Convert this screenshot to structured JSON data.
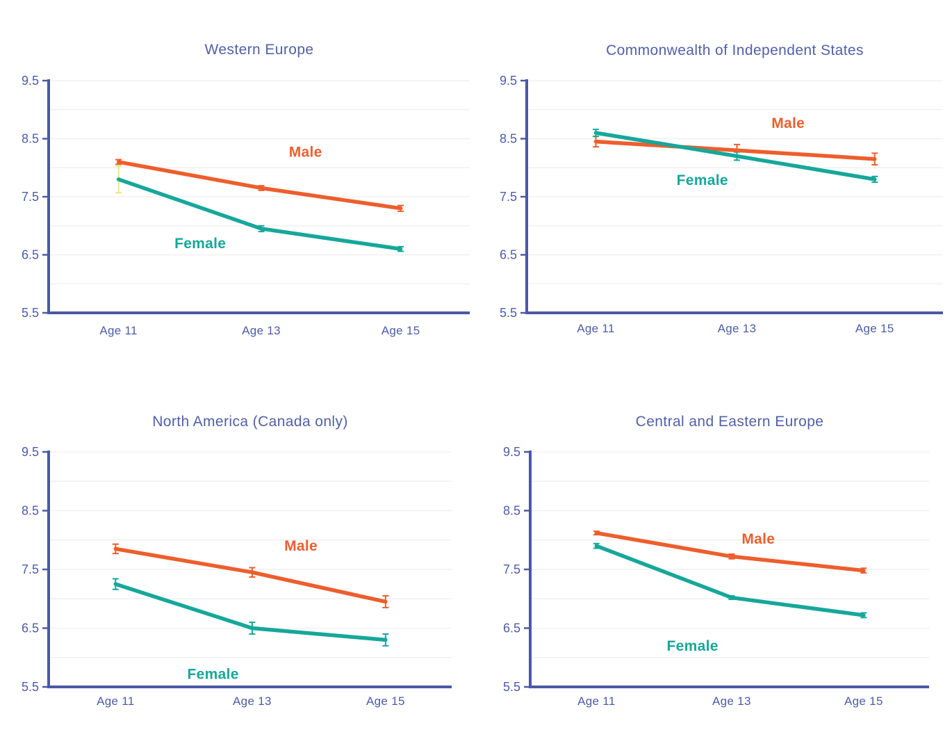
{
  "colors": {
    "male": "#ED5E2D",
    "female": "#16A79A",
    "axis": "#4A59A4",
    "tick_label": "#4C5BA8",
    "title": "#5160A8",
    "grid": "#F0F0F0",
    "ci_yellow": "#E3EA82",
    "background": "#FFFFFF"
  },
  "legend": {
    "male_label": "Male",
    "female_label": "Female"
  },
  "x_axis": {
    "categories": [
      "Age 11",
      "Age 13",
      "Age 15"
    ]
  },
  "y_axis": {
    "ticks": [
      9.5,
      8.5,
      7.5,
      6.5,
      5.5
    ],
    "min": 5.5,
    "max": 9.5,
    "grid_step": 0.5
  },
  "chart_data": [
    {
      "type": "line",
      "title": "Western Europe",
      "categories": [
        "Age 11",
        "Age 13",
        "Age 15"
      ],
      "ylim": [
        5.5,
        9.5
      ],
      "yticks": [
        9.5,
        8.5,
        7.5,
        6.5,
        5.5
      ],
      "series": [
        {
          "name": "Male",
          "color": "#ED5E2D",
          "values": [
            8.1,
            7.65,
            7.3
          ],
          "errors": [
            0.04,
            0.04,
            0.05
          ],
          "label": {
            "x_frac": 0.61,
            "y": 8.27
          }
        },
        {
          "name": "Female",
          "color": "#16A79A",
          "values": [
            7.8,
            6.95,
            6.6
          ],
          "errors": [
            0.23,
            0.05,
            0.04
          ],
          "error_colors": [
            "#E3EA82",
            null,
            null
          ],
          "label": {
            "x_frac": 0.36,
            "y": 6.7
          }
        }
      ]
    },
    {
      "type": "line",
      "title": "Commonwealth of Independent States",
      "categories": [
        "Age 11",
        "Age 13",
        "Age 15"
      ],
      "ylim": [
        5.5,
        9.5
      ],
      "yticks": [
        9.5,
        8.5,
        7.5,
        6.5,
        5.5
      ],
      "series": [
        {
          "name": "Male",
          "color": "#ED5E2D",
          "values": [
            8.45,
            8.3,
            8.15
          ],
          "errors": [
            0.09,
            0.1,
            0.1
          ],
          "label": {
            "x_frac": 0.628,
            "y": 8.77
          }
        },
        {
          "name": "Female",
          "color": "#16A79A",
          "values": [
            8.6,
            8.2,
            7.8
          ],
          "errors": [
            0.06,
            0.07,
            0.05
          ],
          "label": {
            "x_frac": 0.422,
            "y": 7.79
          }
        }
      ]
    },
    {
      "type": "line",
      "title": "North America (Canada only)",
      "categories": [
        "Age 11",
        "Age 13",
        "Age 15"
      ],
      "ylim": [
        5.5,
        9.5
      ],
      "yticks": [
        9.5,
        8.5,
        7.5,
        6.5,
        5.5
      ],
      "series": [
        {
          "name": "Male",
          "color": "#ED5E2D",
          "values": [
            7.85,
            7.45,
            6.95
          ],
          "errors": [
            0.08,
            0.08,
            0.1
          ],
          "label": {
            "x_frac": 0.626,
            "y": 7.9
          }
        },
        {
          "name": "Female",
          "color": "#16A79A",
          "values": [
            7.25,
            6.5,
            6.3
          ],
          "errors": [
            0.09,
            0.1,
            0.1
          ],
          "label": {
            "x_frac": 0.408,
            "y": 5.72
          }
        }
      ]
    },
    {
      "type": "line",
      "title": "Central and Eastern Europe",
      "categories": [
        "Age 11",
        "Age 13",
        "Age 15"
      ],
      "ylim": [
        5.5,
        9.5
      ],
      "yticks": [
        9.5,
        8.5,
        7.5,
        6.5,
        5.5
      ],
      "series": [
        {
          "name": "Male",
          "color": "#ED5E2D",
          "values": [
            8.12,
            7.72,
            7.48
          ],
          "errors": [
            0.03,
            0.04,
            0.04
          ],
          "label": {
            "x_frac": 0.572,
            "y": 8.02
          }
        },
        {
          "name": "Female",
          "color": "#16A79A",
          "values": [
            7.9,
            7.02,
            6.72
          ],
          "errors": [
            0.04,
            0.03,
            0.04
          ],
          "label": {
            "x_frac": 0.407,
            "y": 6.2
          }
        }
      ]
    }
  ]
}
